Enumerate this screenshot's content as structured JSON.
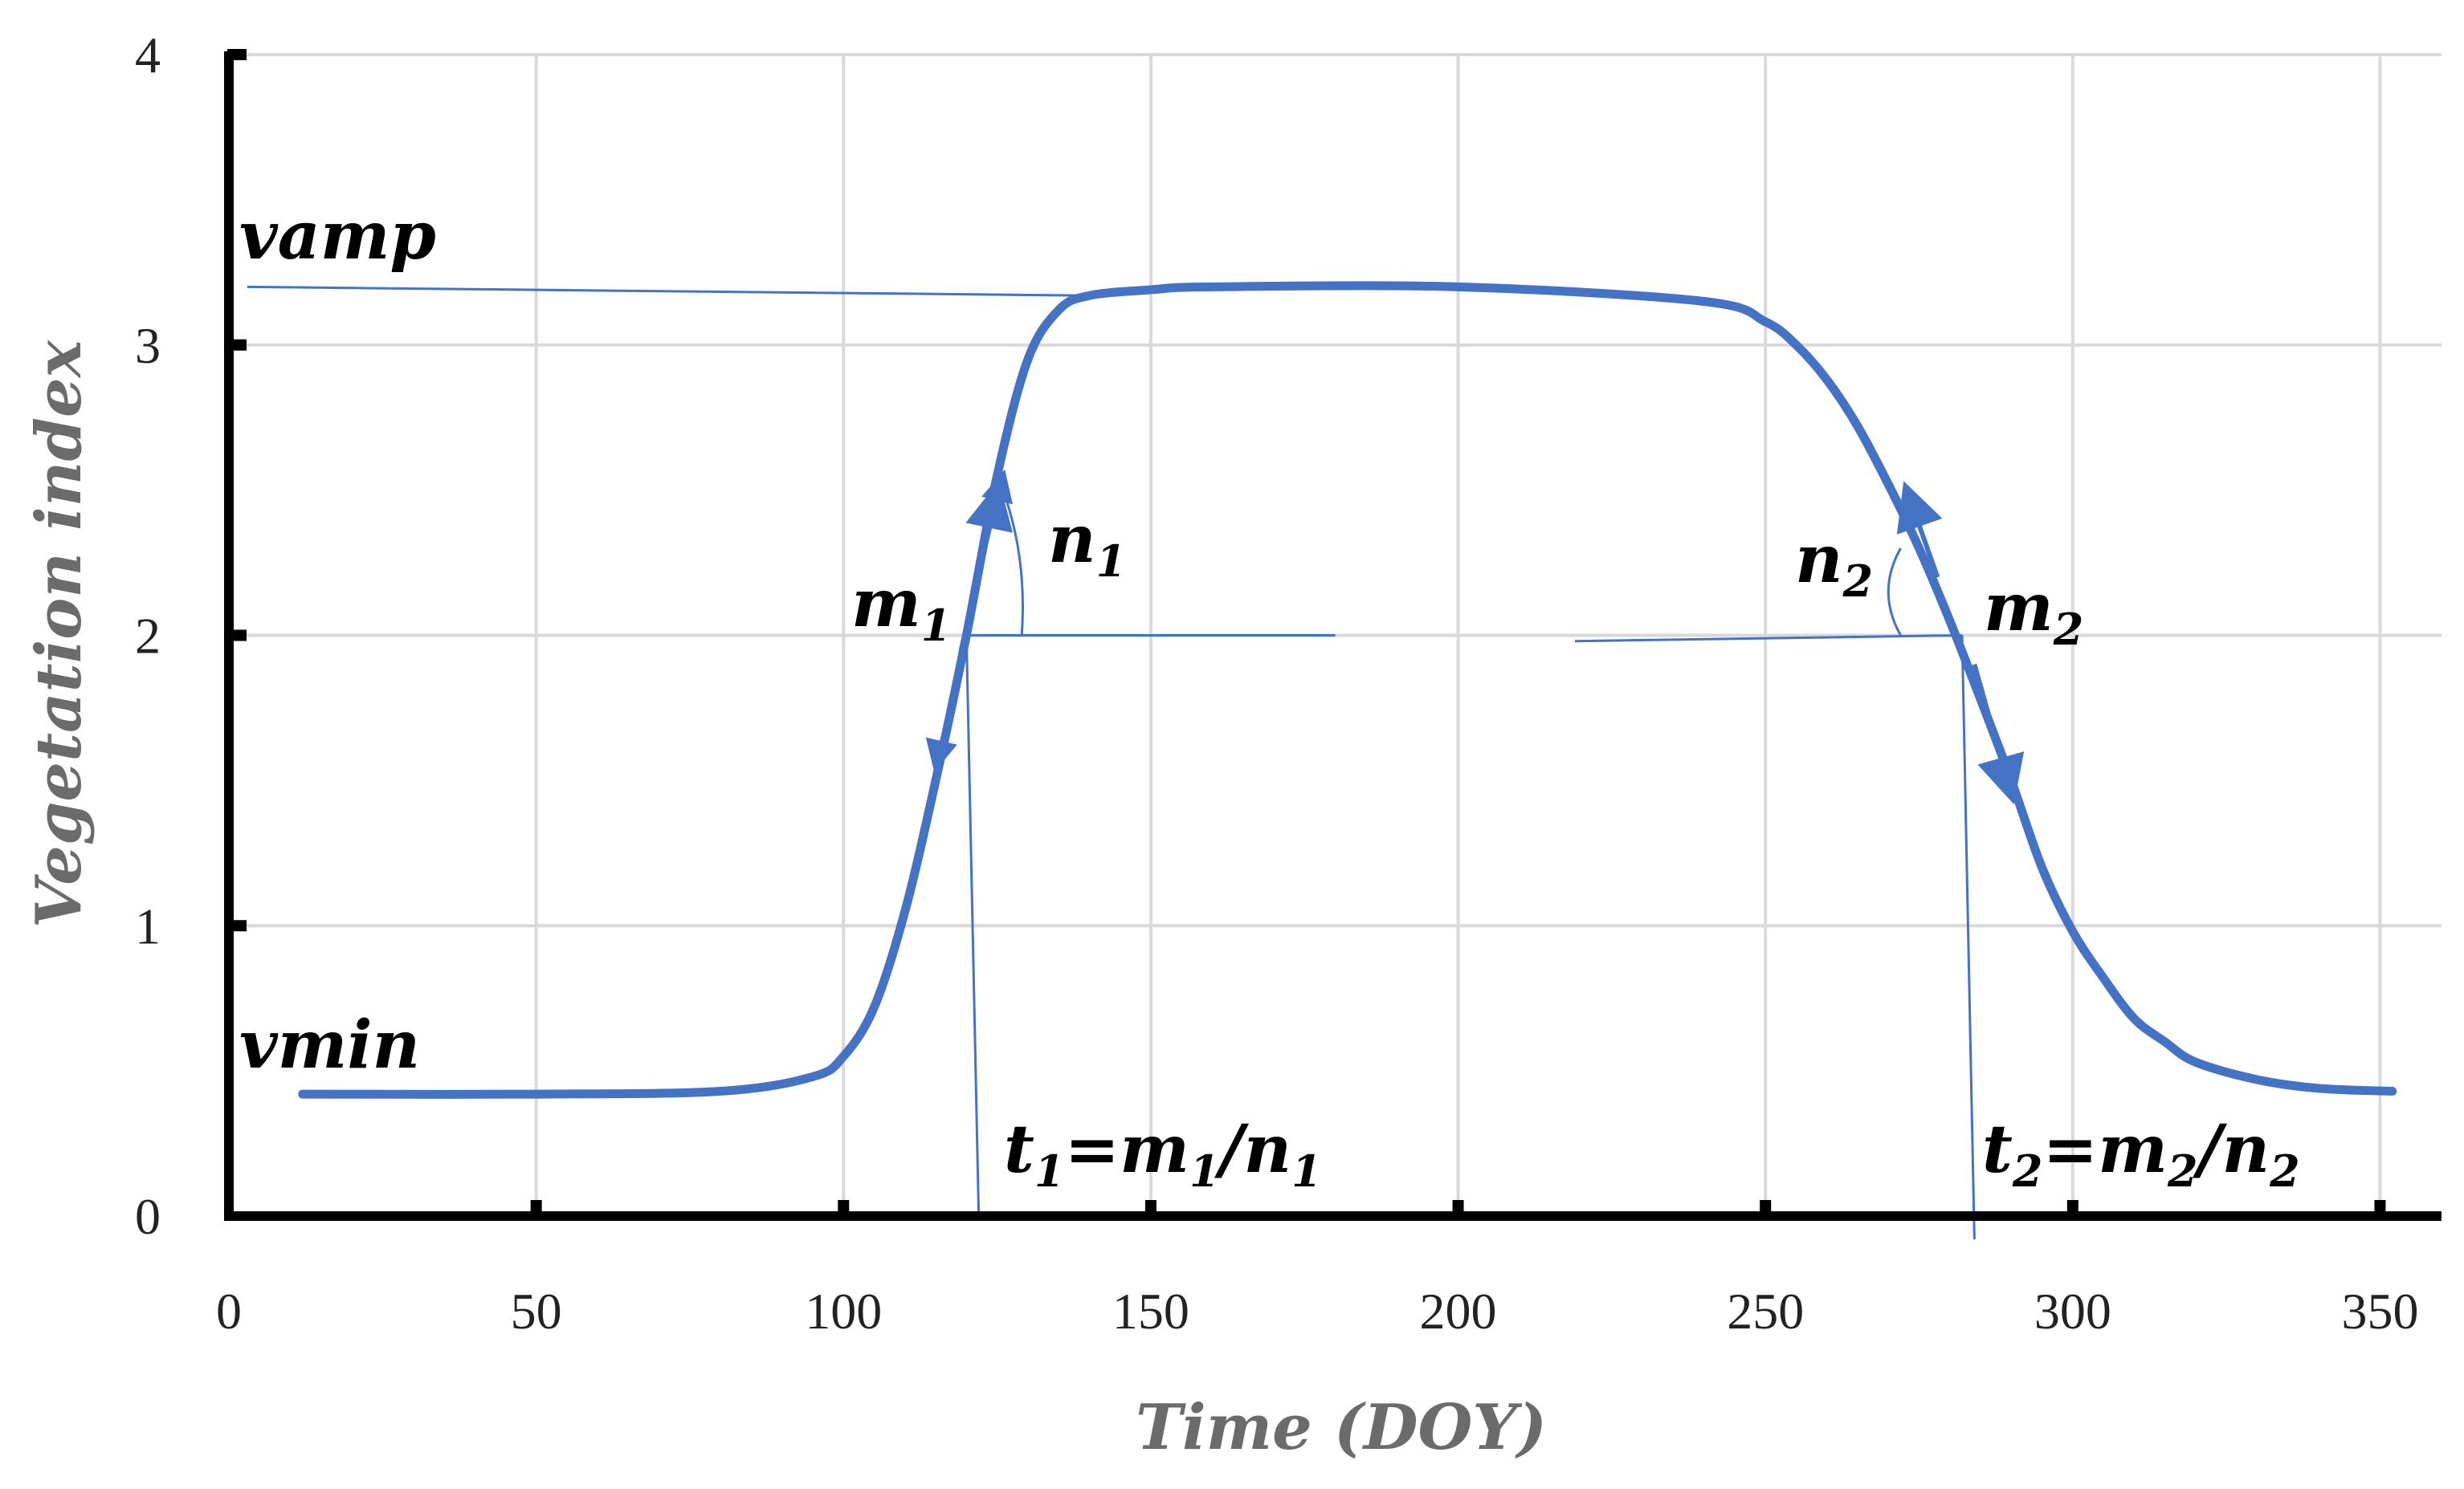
{
  "chart_data": {
    "type": "line",
    "xlabel": "Time (DOY)",
    "ylabel": "Vegetation index",
    "xlim": [
      0,
      360
    ],
    "ylim": [
      0,
      4
    ],
    "xticks": [
      0,
      50,
      100,
      150,
      200,
      250,
      300,
      350
    ],
    "yticks": [
      0,
      1,
      2,
      3,
      4
    ],
    "grid": true,
    "series": [
      {
        "x": [
          12,
          50,
          80,
          95,
          100,
          105,
          110,
          115,
          120,
          125,
          130,
          135,
          140,
          150,
          160,
          200,
          240,
          250,
          255,
          260,
          265,
          270,
          275,
          280,
          285,
          290,
          295,
          300,
          305,
          310,
          315,
          320,
          330,
          340,
          352
        ],
        "y": [
          0.42,
          0.42,
          0.43,
          0.48,
          0.55,
          0.72,
          1.05,
          1.5,
          2.0,
          2.55,
          2.95,
          3.12,
          3.17,
          3.19,
          3.2,
          3.2,
          3.15,
          3.08,
          3.0,
          2.88,
          2.72,
          2.52,
          2.3,
          2.05,
          1.78,
          1.5,
          1.2,
          0.98,
          0.82,
          0.68,
          0.6,
          0.53,
          0.47,
          0.44,
          0.43
        ]
      }
    ],
    "color": "#4472c4",
    "guide_color": "#4472c4",
    "annotations": {
      "vamp": "vamp",
      "vmin": "vmin",
      "m1": {
        "base": "m",
        "sub": "1"
      },
      "n1": {
        "base": "n",
        "sub": "1"
      },
      "m2": {
        "base": "m",
        "sub": "2"
      },
      "n2": {
        "base": "n",
        "sub": "2"
      },
      "t1": {
        "t": "t",
        "ts": "1",
        "eq": "=",
        "m": "m",
        "ms": "1",
        "slash": "/",
        "n": "n",
        "ns": "1"
      },
      "t2": {
        "t": "t",
        "ts": "2",
        "eq": "=",
        "m": "m",
        "ms": "2",
        "slash": "/",
        "n": "n",
        "ns": "2"
      }
    }
  }
}
